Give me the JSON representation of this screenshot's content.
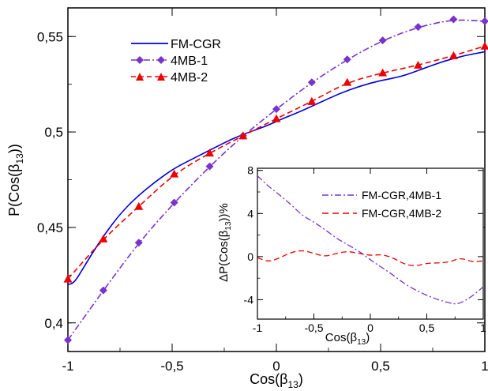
{
  "chart_data": [
    {
      "type": "line",
      "xlabel_main": "Cos(β",
      "xlabel_sub": "13",
      "xlabel_tail": ")",
      "ylabel_main": "P(Cos(β",
      "ylabel_sub": "13",
      "ylabel_tail": "))",
      "xlim": [
        -1,
        1
      ],
      "ylim": [
        0.385,
        0.565
      ],
      "x_ticks": [
        -1,
        -0.5,
        0,
        0.5,
        1
      ],
      "x_tick_labels": [
        "-1",
        "-0,5",
        "0",
        "0,5",
        "1"
      ],
      "y_ticks": [
        0.4,
        0.45,
        0.5,
        0.55
      ],
      "y_tick_labels": [
        "0,4",
        "0,45",
        "0,5",
        "0,55"
      ],
      "legend_position": "top-left",
      "series": [
        {
          "name": "FM-CGR",
          "color": "#0000dd",
          "style": "solid",
          "marker": "none",
          "x": [
            -1,
            -0.97,
            -0.93,
            -0.88,
            -0.82,
            -0.75,
            -0.67,
            -0.58,
            -0.49,
            -0.4,
            -0.31,
            -0.22,
            -0.13,
            -0.05,
            0.03,
            0.1,
            0.2,
            0.3,
            0.4,
            0.5,
            0.6,
            0.7,
            0.8,
            0.9,
            1.0
          ],
          "y": [
            0.42,
            0.421,
            0.428,
            0.437,
            0.447,
            0.457,
            0.466,
            0.474,
            0.481,
            0.486,
            0.491,
            0.496,
            0.5,
            0.503,
            0.507,
            0.51,
            0.515,
            0.52,
            0.524,
            0.527,
            0.529,
            0.533,
            0.537,
            0.54,
            0.542
          ]
        },
        {
          "name": "4MB-1",
          "color": "#7733cc",
          "style": "dashdot",
          "marker": "diamond",
          "x": [
            -1,
            -0.83,
            -0.66,
            -0.49,
            -0.32,
            -0.16,
            0.0,
            0.17,
            0.34,
            0.51,
            0.68,
            0.85,
            1.0
          ],
          "y": [
            0.391,
            0.417,
            0.442,
            0.463,
            0.482,
            0.498,
            0.512,
            0.526,
            0.538,
            0.548,
            0.555,
            0.559,
            0.558
          ]
        },
        {
          "name": "4MB-2",
          "color": "#ee0000",
          "style": "dashed",
          "marker": "triangle",
          "x": [
            -1,
            -0.83,
            -0.66,
            -0.49,
            -0.32,
            -0.16,
            0.0,
            0.17,
            0.34,
            0.51,
            0.68,
            0.85,
            1.0
          ],
          "y": [
            0.423,
            0.444,
            0.461,
            0.478,
            0.489,
            0.498,
            0.507,
            0.516,
            0.526,
            0.531,
            0.535,
            0.54,
            0.545
          ]
        }
      ]
    },
    {
      "type": "line",
      "xlabel_main": "Cos(β",
      "xlabel_sub": "13",
      "xlabel_tail": ")",
      "ylabel_main": "ΔP(Cos(β",
      "ylabel_sub": "13",
      "ylabel_tail": "))%",
      "xlim": [
        -1,
        1
      ],
      "ylim": [
        -5.8,
        8.2
      ],
      "x_ticks": [
        -1,
        -0.5,
        0,
        0.5,
        1
      ],
      "x_tick_labels": [
        "-1",
        "-0,5",
        "0",
        "0,5",
        "1"
      ],
      "y_ticks": [
        -4,
        0,
        4,
        8
      ],
      "y_tick_labels": [
        "-4",
        "0",
        "4",
        "8"
      ],
      "legend_position": "top-right",
      "series": [
        {
          "name": "FM-CGR,4MB-1",
          "color": "#7733cc",
          "style": "dashdot",
          "marker": "none",
          "x": [
            -1,
            -0.9,
            -0.8,
            -0.7,
            -0.6,
            -0.5,
            -0.4,
            -0.3,
            -0.2,
            -0.1,
            0.0,
            0.1,
            0.2,
            0.3,
            0.4,
            0.5,
            0.6,
            0.7,
            0.75,
            0.8,
            0.9,
            1.0
          ],
          "y": [
            7.5,
            6.5,
            5.7,
            4.8,
            3.8,
            3.2,
            2.5,
            1.7,
            1.1,
            0.5,
            -0.3,
            -1.0,
            -1.7,
            -2.5,
            -3.1,
            -3.6,
            -4.0,
            -4.3,
            -4.4,
            -4.3,
            -3.7,
            -2.8
          ]
        },
        {
          "name": "FM-CGR,4MB-2",
          "color": "#ee0000",
          "style": "dashed",
          "marker": "none",
          "x": [
            -1,
            -0.9,
            -0.8,
            -0.7,
            -0.6,
            -0.5,
            -0.4,
            -0.3,
            -0.2,
            -0.1,
            0.0,
            0.1,
            0.2,
            0.3,
            0.4,
            0.5,
            0.6,
            0.7,
            0.8,
            0.9,
            1.0
          ],
          "y": [
            -0.1,
            -0.5,
            -0.1,
            0.4,
            0.6,
            0.3,
            0.0,
            0.3,
            0.5,
            0.3,
            0.1,
            0.2,
            -0.1,
            -0.7,
            -0.9,
            -0.6,
            -0.6,
            -0.5,
            -0.1,
            -0.5,
            -0.4
          ]
        }
      ]
    }
  ]
}
